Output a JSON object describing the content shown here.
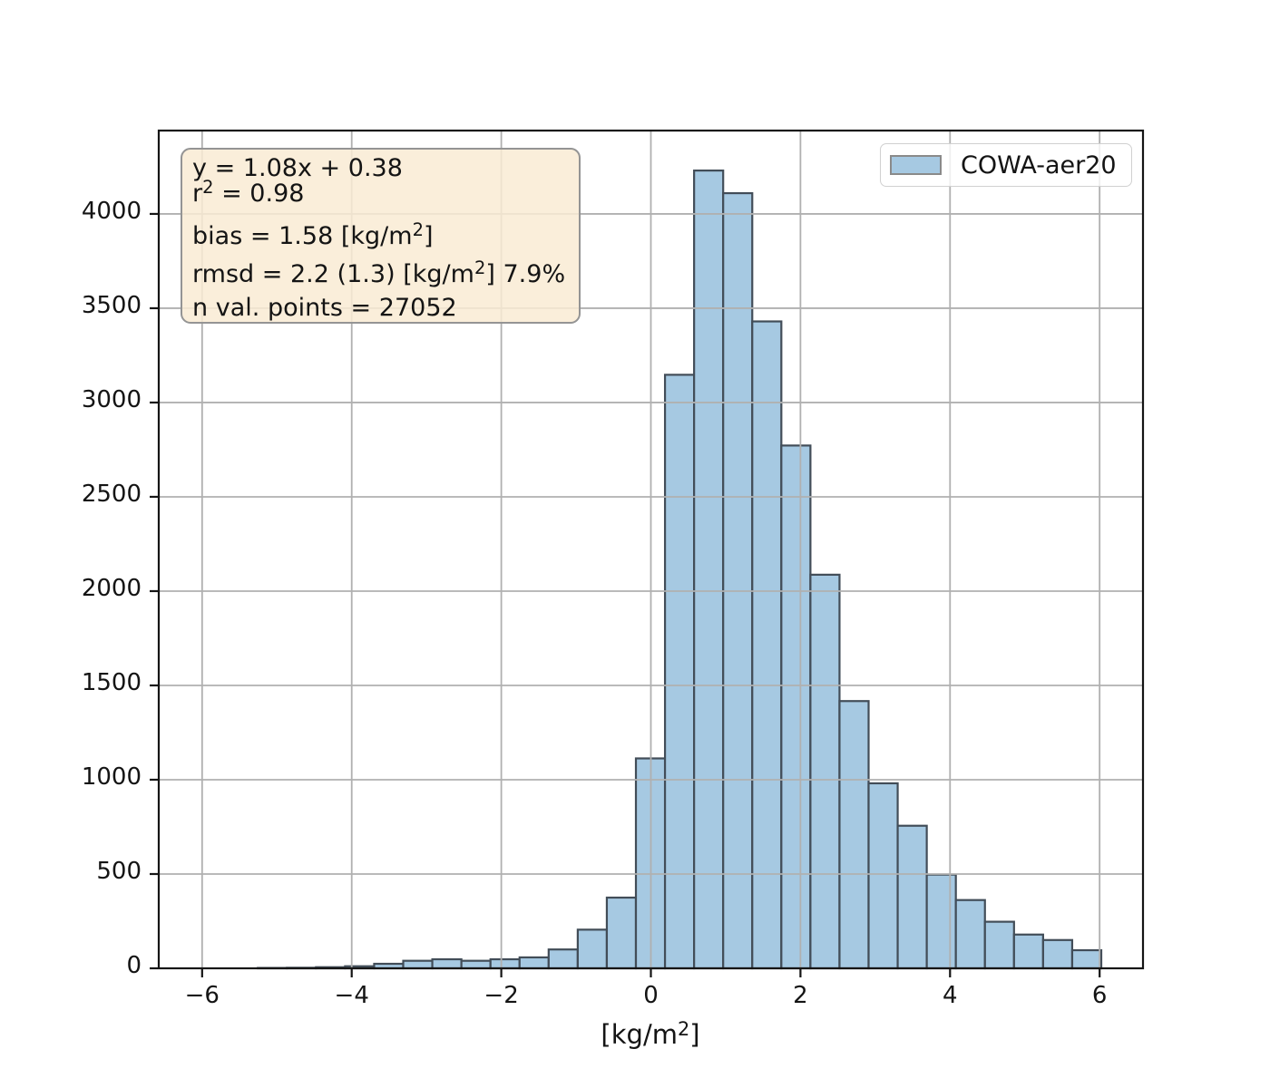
{
  "chart_data": {
    "type": "bar",
    "title": "",
    "xlabel": "[kg/m²]",
    "ylabel": "",
    "legend": [
      {
        "label": "COWA-aer20",
        "position": "upper-right"
      }
    ],
    "xlim": [
      -6.58,
      6.58
    ],
    "ylim": [
      0,
      4442
    ],
    "xticks": [
      -6,
      -4,
      -2,
      0,
      2,
      4,
      6
    ],
    "xtick_labels": [
      "−6",
      "−4",
      "−2",
      "0",
      "2",
      "4",
      "6"
    ],
    "yticks": [
      0,
      500,
      1000,
      1500,
      2000,
      2500,
      3000,
      3500,
      4000
    ],
    "ytick_labels": [
      "0",
      "500",
      "1000",
      "1500",
      "2000",
      "2500",
      "3000",
      "3500",
      "4000"
    ],
    "grid": true,
    "histogram": {
      "bin_start": -5.2556,
      "bin_width": 0.38889,
      "counts": [
        2,
        3,
        6,
        11,
        24,
        40,
        48,
        40,
        48,
        58,
        100,
        205,
        375,
        1113,
        3147,
        4230,
        4110,
        3430,
        2772,
        2087,
        1417,
        981,
        756,
        497,
        362,
        247,
        179,
        150,
        96
      ]
    },
    "stats_box": {
      "lines": [
        "y = 1.08x + 0.38",
        "r² = 0.98",
        "bias = 1.58 [kg/m²]",
        "rmsd = 2.2 (1.3) [kg/m²] 7.9%",
        "n val. points = 27052"
      ]
    },
    "colors": {
      "bar_fill": "#a6c9e2",
      "bar_edge": "#424d58",
      "grid": "#b0b0b0",
      "spine": "#151515",
      "stats_box_bg": "rgba(249,235,211,0.85)",
      "stats_box_border": "#949494",
      "legend_border": "#d0d0d0"
    }
  }
}
